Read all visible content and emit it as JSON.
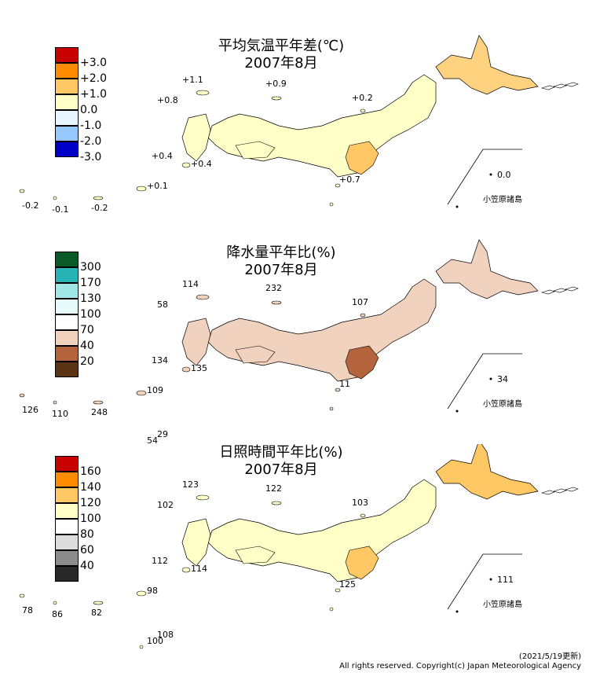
{
  "panels": [
    {
      "id": "temp",
      "title_line1": "平均気温平年差(℃)",
      "title_line2": "2007年8月",
      "legend": {
        "ticks": [
          "+3.0",
          "+2.0",
          "+1.0",
          "0.0",
          "-1.0",
          "-2.0",
          "-3.0"
        ],
        "colors": [
          "#c80000",
          "#ff8c00",
          "#ffc864",
          "#ffffc8",
          "#e6f5ff",
          "#96c8ff",
          "#0000c8"
        ]
      },
      "labels": {
        "l1": "+1.1",
        "l2": "+0.9",
        "l3": "+0.8",
        "l4": "+0.2",
        "l5": "+0.4",
        "l6": "+0.4",
        "l7": "+0.7",
        "l8": "+0.1",
        "l9": "+0.1",
        "l10": "-0.2",
        "l11": "-0.1",
        "l12": "-0.2",
        "l13": "-0.1",
        "ogasa_val": "0.0"
      },
      "region_colors": {
        "hokkaido": "#ffd27f",
        "honshu": "#ffffc8",
        "kanto": "#ffc864"
      }
    },
    {
      "id": "precip",
      "title_line1": "降水量平年比(%)",
      "title_line2": "2007年8月",
      "legend": {
        "ticks": [
          "300",
          "170",
          "130",
          "100",
          "70",
          "40",
          "20"
        ],
        "colors": [
          "#0a5a28",
          "#28b4b4",
          "#a0e6e6",
          "#e6fafa",
          "#ffffff",
          "#f0d2be",
          "#b4643c",
          "#5a3214"
        ]
      },
      "labels": {
        "l1": "114",
        "l2": "232",
        "l3": "58",
        "l4": "107",
        "l5": "134",
        "l6": "135",
        "l7": "11",
        "l8": "29",
        "l9": "109",
        "l10": "126",
        "l11": "110",
        "l12": "248",
        "l13": "54",
        "ogasa_val": "34"
      },
      "region_colors": {
        "hokkaido": "#f0d2be",
        "honshu": "#f0d2be",
        "kanto": "#b4643c"
      }
    },
    {
      "id": "sun",
      "title_line1": "日照時間平年比(%)",
      "title_line2": "2007年8月",
      "legend": {
        "ticks": [
          "160",
          "140",
          "120",
          "100",
          "80",
          "60",
          "40"
        ],
        "colors": [
          "#c80000",
          "#ff8c00",
          "#ffc864",
          "#ffffc8",
          "#ffffff",
          "#dcdcdc",
          "#8c8c8c",
          "#282828"
        ]
      },
      "labels": {
        "l1": "123",
        "l2": "122",
        "l3": "102",
        "l4": "103",
        "l5": "112",
        "l6": "114",
        "l7": "125",
        "l8": "108",
        "l9": "98",
        "l10": "78",
        "l11": "86",
        "l12": "82",
        "l13": "100",
        "ogasa_val": "111"
      },
      "region_colors": {
        "hokkaido": "#ffc864",
        "honshu": "#ffffc8",
        "kanto": "#ffc864"
      }
    }
  ],
  "ogasawara_label": "小笠原諸島",
  "footer": {
    "updated": "(2021/5/19更新)",
    "copyright": "All rights reserved. Copyright(c) Japan Meteorological Agency"
  }
}
